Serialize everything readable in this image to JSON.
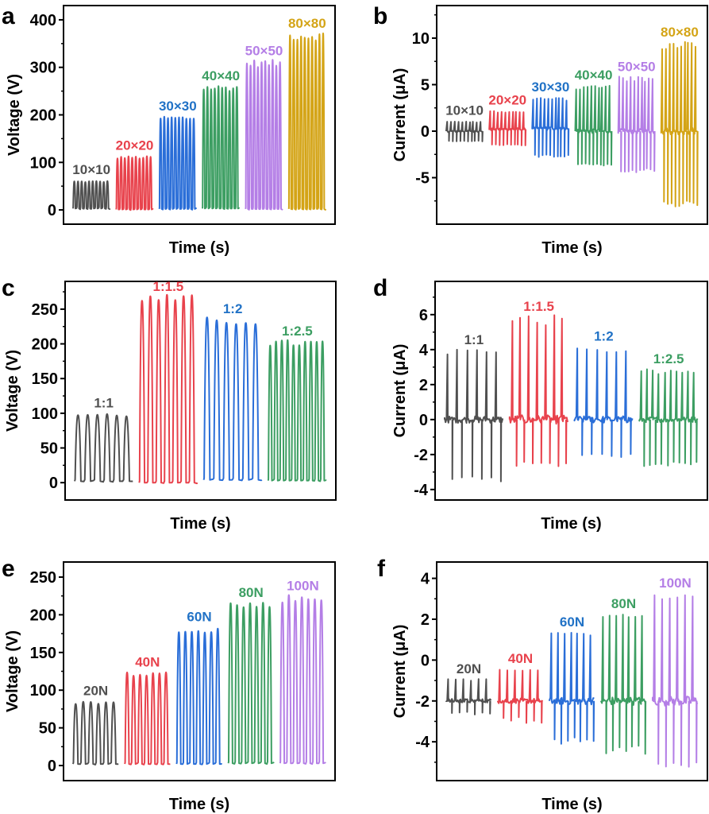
{
  "colors": {
    "gray": "#505050",
    "red": "#e8424c",
    "blue": "#2a6ed8",
    "green": "#3c9e62",
    "purple": "#b47ee6",
    "gold": "#d4a416",
    "label_blue": "#2172c6",
    "label_green": "#3b9a5c"
  },
  "chart_data": [
    {
      "panel": "a",
      "type": "line",
      "title": "",
      "xlabel": "Time (s)",
      "ylabel": "Voltage (V)",
      "ylim": [
        -30,
        430
      ],
      "yticks": [
        0,
        100,
        200,
        300,
        400
      ],
      "minor_ticks": true,
      "signal": "voltage",
      "series": [
        {
          "name": "10×10",
          "color": "gray",
          "label_color": "gray",
          "pulses": 10,
          "peak": 60,
          "base": 3
        },
        {
          "name": "20×20",
          "color": "red",
          "label_color": "red",
          "pulses": 10,
          "peak": 111,
          "base": 1
        },
        {
          "name": "30×30",
          "color": "blue",
          "label_color": "label_blue",
          "pulses": 10,
          "peak": 194,
          "base": 2
        },
        {
          "name": "40×40",
          "color": "green",
          "label_color": "green",
          "pulses": 10,
          "peak": 258,
          "base": 3
        },
        {
          "name": "50×50",
          "color": "purple",
          "label_color": "purple",
          "pulses": 10,
          "peak": 310,
          "base": 2
        },
        {
          "name": "80×80",
          "color": "gold",
          "label_color": "gold",
          "pulses": 10,
          "peak": 368,
          "base": 2
        }
      ]
    },
    {
      "panel": "b",
      "type": "line",
      "title": "",
      "xlabel": "Time (s)",
      "ylabel": "Current (μA)",
      "ylim": [
        -10,
        13.5
      ],
      "yticks": [
        -5,
        0,
        5,
        10
      ],
      "minor_ticks": true,
      "signal": "current",
      "series": [
        {
          "name": "10×10",
          "color": "gray",
          "label_color": "gray",
          "pulses": 10,
          "pos": 1.0,
          "neg": -1.1,
          "base": 0
        },
        {
          "name": "20×20",
          "color": "red",
          "label_color": "red",
          "pulses": 10,
          "pos": 2.1,
          "neg": -1.5,
          "base": 0.2
        },
        {
          "name": "30×30",
          "color": "blue",
          "label_color": "label_blue",
          "pulses": 10,
          "pos": 3.5,
          "neg": -2.7,
          "base": 0.3
        },
        {
          "name": "40×40",
          "color": "green",
          "label_color": "green",
          "pulses": 10,
          "pos": 4.8,
          "neg": -3.7,
          "base": 0
        },
        {
          "name": "50×50",
          "color": "purple",
          "label_color": "purple",
          "pulses": 10,
          "pos": 5.7,
          "neg": -4.3,
          "base": 0
        },
        {
          "name": "80×80",
          "color": "gold",
          "label_color": "gold",
          "pulses": 10,
          "pos": 9.4,
          "neg": -8.0,
          "base": 0
        }
      ]
    },
    {
      "panel": "c",
      "type": "line",
      "title": "",
      "xlabel": "Time (s)",
      "ylabel": "Voltage (V)",
      "ylim": [
        -25,
        290
      ],
      "yticks": [
        0,
        50,
        100,
        150,
        200,
        250
      ],
      "minor_ticks": true,
      "signal": "voltage",
      "series": [
        {
          "name": "1:1",
          "color": "gray",
          "label_color": "gray",
          "pulses": 6,
          "peak": 98,
          "base": 2
        },
        {
          "name": "1:1.5",
          "color": "red",
          "label_color": "red",
          "pulses": 7,
          "peak": 266,
          "base": 0
        },
        {
          "name": "1:2",
          "color": "blue",
          "label_color": "label_blue",
          "pulses": 6,
          "peak": 234,
          "base": 4
        },
        {
          "name": "1:2.5",
          "color": "green",
          "label_color": "green",
          "pulses": 10,
          "peak": 202,
          "base": 3
        }
      ]
    },
    {
      "panel": "d",
      "type": "line",
      "title": "",
      "xlabel": "Time (s)",
      "ylabel": "Current (μA)",
      "ylim": [
        -4.6,
        7.9
      ],
      "yticks": [
        -4,
        -2,
        0,
        2,
        4,
        6
      ],
      "minor_ticks": true,
      "signal": "current",
      "series": [
        {
          "name": "1:1",
          "color": "gray",
          "label_color": "gray",
          "pulses": 6,
          "pos": 3.9,
          "neg": -3.5,
          "base": 0
        },
        {
          "name": "1:1.5",
          "color": "red",
          "label_color": "red",
          "pulses": 7,
          "pos": 5.8,
          "neg": -2.6,
          "base": 0
        },
        {
          "name": "1:2",
          "color": "blue",
          "label_color": "label_blue",
          "pulses": 6,
          "pos": 4.1,
          "neg": -2.1,
          "base": 0
        },
        {
          "name": "1:2.5",
          "color": "green",
          "label_color": "green",
          "pulses": 10,
          "pos": 2.8,
          "neg": -2.6,
          "base": 0
        }
      ]
    },
    {
      "panel": "e",
      "type": "line",
      "title": "",
      "xlabel": "Time (s)",
      "ylabel": "Voltage (V)",
      "ylim": [
        -20,
        270
      ],
      "yticks": [
        0,
        50,
        100,
        150,
        200,
        250
      ],
      "minor_ticks": true,
      "signal": "voltage",
      "series": [
        {
          "name": "20N",
          "color": "gray",
          "label_color": "gray",
          "pulses": 6,
          "peak": 84,
          "base": 2
        },
        {
          "name": "40N",
          "color": "red",
          "label_color": "red",
          "pulses": 7,
          "peak": 122,
          "base": 2
        },
        {
          "name": "60N",
          "color": "blue",
          "label_color": "label_blue",
          "pulses": 7,
          "peak": 182,
          "base": 2
        },
        {
          "name": "80N",
          "color": "green",
          "label_color": "green",
          "pulses": 7,
          "peak": 214,
          "base": 3
        },
        {
          "name": "100N",
          "color": "purple",
          "label_color": "purple",
          "pulses": 7,
          "peak": 223,
          "base": 3
        }
      ]
    },
    {
      "panel": "f",
      "type": "line",
      "title": "",
      "xlabel": "Time (s)",
      "ylabel": "Current (μA)",
      "ylim": [
        -5.9,
        4.8
      ],
      "yticks": [
        -4,
        -2,
        0,
        2,
        4
      ],
      "minor_ticks": true,
      "signal": "current",
      "series": [
        {
          "name": "20N",
          "color": "gray",
          "label_color": "gray",
          "pulses": 6,
          "pos": -1.0,
          "neg": -2.6,
          "base": -2.0
        },
        {
          "name": "40N",
          "color": "red",
          "label_color": "red",
          "pulses": 6,
          "pos": -0.5,
          "neg": -3.0,
          "base": -2.0
        },
        {
          "name": "60N",
          "color": "blue",
          "label_color": "label_blue",
          "pulses": 7,
          "pos": 1.3,
          "neg": -4.0,
          "base": -2.0
        },
        {
          "name": "80N",
          "color": "green",
          "label_color": "green",
          "pulses": 7,
          "pos": 2.2,
          "neg": -4.5,
          "base": -2.0
        },
        {
          "name": "100N",
          "color": "purple",
          "label_color": "purple",
          "pulses": 6,
          "pos": 3.2,
          "neg": -5.1,
          "base": -2.0
        }
      ]
    }
  ]
}
